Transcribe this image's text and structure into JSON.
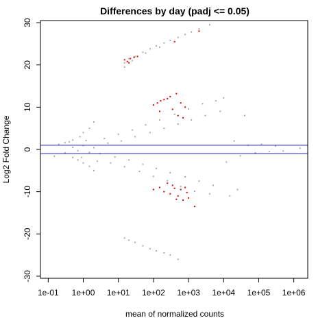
{
  "chart_data": {
    "type": "scatter",
    "title": "Differences by day (padj <= 0.05)",
    "xlabel": "mean of normalized counts",
    "ylabel": "Log2 Fold Change",
    "x_scale": "log10",
    "xlim": [
      0.06,
      2500000
    ],
    "ylim": [
      -30.5,
      30.5
    ],
    "x_ticks": [
      {
        "value": 0.1,
        "label": "1e-01"
      },
      {
        "value": 1,
        "label": "1e+00"
      },
      {
        "value": 10,
        "label": "1e+01"
      },
      {
        "value": 100,
        "label": "1e+02"
      },
      {
        "value": 1000,
        "label": "1e+03"
      },
      {
        "value": 10000,
        "label": "1e+04"
      },
      {
        "value": 100000,
        "label": "1e+05"
      },
      {
        "value": 1000000,
        "label": "1e+06"
      }
    ],
    "y_ticks": [
      {
        "value": -30,
        "label": "-30"
      },
      {
        "value": -20,
        "label": "-20"
      },
      {
        "value": -10,
        "label": "-10"
      },
      {
        "value": 0,
        "label": "0"
      },
      {
        "value": 10,
        "label": "10"
      },
      {
        "value": 20,
        "label": "20"
      },
      {
        "value": 30,
        "label": "30"
      }
    ],
    "hlines": [
      {
        "y": 1,
        "color": "#2222cc"
      },
      {
        "y": -1,
        "color": "#2222cc"
      }
    ],
    "series": [
      {
        "color": "#a9a9a9",
        "points": [
          [
            0.2,
            1.2
          ],
          [
            0.3,
            -0.8
          ],
          [
            0.5,
            0.5
          ],
          [
            0.7,
            -0.3
          ],
          [
            1.0,
            0.9
          ],
          [
            1.5,
            -0.7
          ],
          [
            2.0,
            0.4
          ],
          [
            3.0,
            -1.0
          ],
          [
            5.0,
            1.5
          ],
          [
            8.0,
            -1.8
          ],
          [
            12,
            2.0
          ],
          [
            20,
            -2.5
          ],
          [
            30,
            3.0
          ],
          [
            50,
            -3.5
          ],
          [
            80,
            4.0
          ],
          [
            120,
            -4.5
          ],
          [
            200,
            5.0
          ],
          [
            300,
            -5.5
          ],
          [
            500,
            6.0
          ],
          [
            800,
            -6.5
          ],
          [
            1200,
            7.0
          ],
          [
            2000,
            -7.5
          ],
          [
            3000,
            8.0
          ],
          [
            5000,
            -8.5
          ],
          [
            8000,
            9.0
          ],
          [
            12000,
            -3.0
          ],
          [
            20000,
            2.0
          ],
          [
            30000,
            -1.5
          ],
          [
            50000,
            1.0
          ],
          [
            80000,
            -0.8
          ],
          [
            120000,
            1.2
          ],
          [
            200000,
            -0.5
          ],
          [
            300000,
            0.8
          ],
          [
            500000,
            -0.4
          ],
          [
            1500000,
            0.3
          ],
          [
            0.15,
            -1.6
          ],
          [
            0.4,
            1.8
          ],
          [
            0.9,
            -1.9
          ],
          [
            1.2,
            2.1
          ],
          [
            2.5,
            -2.8
          ],
          [
            4,
            2.6
          ],
          [
            6,
            -3.2
          ],
          [
            10,
            3.6
          ],
          [
            15,
            -4.1
          ],
          [
            25,
            4.6
          ],
          [
            40,
            -5.2
          ],
          [
            60,
            5.8
          ],
          [
            100,
            -6.4
          ],
          [
            150,
            7.0
          ],
          [
            250,
            -7.4
          ],
          [
            400,
            8.3
          ],
          [
            600,
            -8.8
          ],
          [
            1000,
            9.6
          ],
          [
            1500,
            -9.9
          ],
          [
            2500,
            10.8
          ],
          [
            4000,
            -10.5
          ],
          [
            6000,
            11.5
          ],
          [
            10000,
            12.2
          ],
          [
            15000,
            -11.0
          ],
          [
            25000,
            -9.5
          ],
          [
            40000,
            8.0
          ],
          [
            2.0,
            6.5
          ],
          [
            1.5,
            5.0
          ],
          [
            1.0,
            4.0
          ],
          [
            0.8,
            3.0
          ],
          [
            0.5,
            2.2
          ],
          [
            0.3,
            1.6
          ],
          [
            2.0,
            -5.0
          ],
          [
            1.5,
            -4.0
          ],
          [
            1.0,
            -3.2
          ],
          [
            0.7,
            -2.5
          ],
          [
            0.5,
            -1.9
          ],
          [
            15,
            20.5
          ],
          [
            20,
            21.5
          ],
          [
            30,
            22.0
          ],
          [
            50,
            23.0
          ],
          [
            80,
            23.8
          ],
          [
            120,
            24.5
          ],
          [
            200,
            25.2
          ],
          [
            300,
            25.8
          ],
          [
            500,
            26.5
          ],
          [
            800,
            27.2
          ],
          [
            1200,
            27.8
          ],
          [
            2000,
            28.5
          ],
          [
            4000,
            29.5
          ],
          [
            15,
            19.5
          ],
          [
            25,
            21.0
          ],
          [
            60,
            22.8
          ],
          [
            150,
            24.2
          ],
          [
            15,
            -21.0
          ],
          [
            20,
            -21.5
          ],
          [
            30,
            -22.0
          ],
          [
            50,
            -22.8
          ],
          [
            80,
            -23.5
          ],
          [
            120,
            -24.0
          ],
          [
            200,
            -24.5
          ],
          [
            300,
            -25.0
          ],
          [
            500,
            -26.0
          ]
        ]
      },
      {
        "color": "#dd0000",
        "points": [
          [
            15,
            21.2
          ],
          [
            18,
            20.8
          ],
          [
            22,
            21.5
          ],
          [
            28,
            21.8
          ],
          [
            35,
            22.0
          ],
          [
            20,
            20.5
          ],
          [
            400,
            25.5
          ],
          [
            2000,
            28.0
          ],
          [
            100,
            10.5
          ],
          [
            130,
            11.0
          ],
          [
            160,
            11.5
          ],
          [
            200,
            11.8
          ],
          [
            250,
            12.0
          ],
          [
            300,
            12.5
          ],
          [
            450,
            13.2
          ],
          [
            600,
            11.0
          ],
          [
            800,
            10.0
          ],
          [
            150,
            9.0
          ],
          [
            500,
            8.0
          ],
          [
            700,
            7.5
          ],
          [
            350,
            9.5
          ],
          [
            100,
            -9.5
          ],
          [
            150,
            -9.0
          ],
          [
            200,
            -10.0
          ],
          [
            250,
            -8.0
          ],
          [
            300,
            -10.5
          ],
          [
            400,
            -9.2
          ],
          [
            500,
            -11.0
          ],
          [
            600,
            -9.5
          ],
          [
            700,
            -12.0
          ],
          [
            800,
            -9.0
          ],
          [
            900,
            -10.2
          ],
          [
            1000,
            -11.5
          ],
          [
            1500,
            -13.5
          ],
          [
            450,
            -11.8
          ],
          [
            350,
            -8.5
          ]
        ]
      }
    ]
  }
}
